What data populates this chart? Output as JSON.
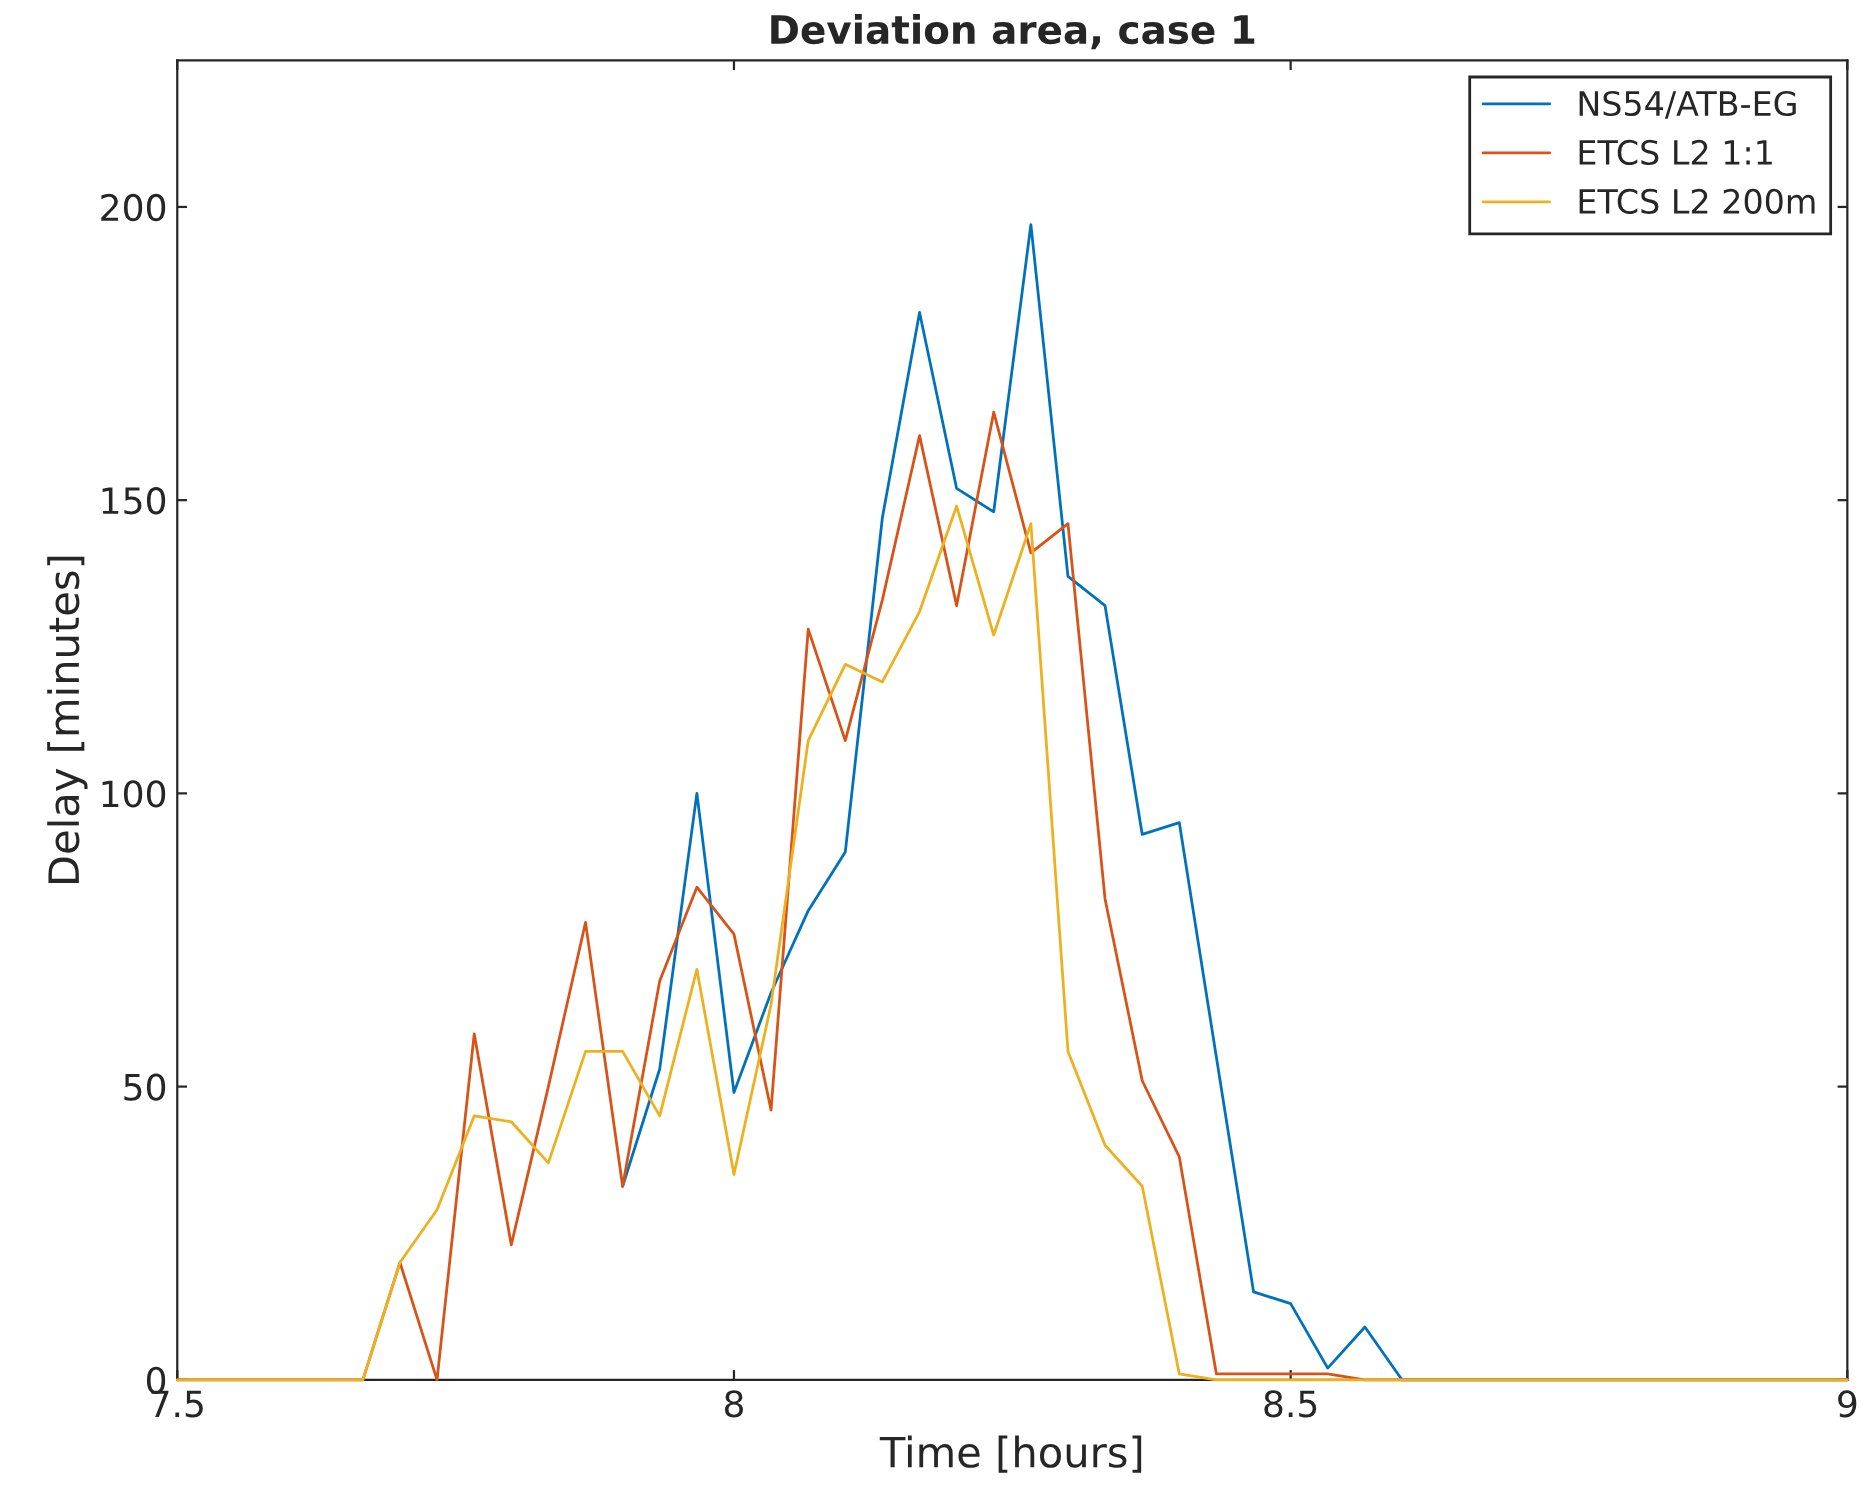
{
  "chart_data": {
    "type": "line",
    "title": "Deviation area, case 1",
    "xlabel": "Time [hours]",
    "ylabel": "Delay [minutes]",
    "x": [
      7.5,
      7.6667,
      7.7,
      7.7333,
      7.7667,
      7.8,
      7.8333,
      7.8667,
      7.9,
      7.9333,
      7.9667,
      8,
      8.0333,
      8.0667,
      8.1,
      8.1333,
      8.1667,
      8.2,
      8.2333,
      8.2667,
      8.3,
      8.3333,
      8.3667,
      8.4,
      8.4333,
      8.4667,
      8.5,
      8.5333,
      8.5667,
      8.6,
      9
    ],
    "series": [
      {
        "name": "NS54/ATB-EG",
        "color": "#0072bd",
        "values": [
          null,
          null,
          null,
          null,
          null,
          null,
          null,
          null,
          33,
          53,
          100,
          49,
          66,
          80,
          90,
          147,
          182,
          152,
          148,
          197,
          137,
          132,
          93,
          95,
          55,
          15,
          13,
          2,
          9,
          0,
          0
        ]
      },
      {
        "name": "ETCS L2 1:1",
        "color": "#d95319",
        "values": [
          0,
          0,
          20,
          0,
          59,
          23,
          50,
          78,
          33,
          68,
          84,
          76,
          46,
          128,
          109,
          133,
          161,
          132,
          165,
          141,
          146,
          82,
          51,
          38,
          1,
          1,
          1,
          1,
          0,
          0,
          0
        ]
      },
      {
        "name": "ETCS L2 200m",
        "color": "#edb120",
        "values": [
          0,
          0,
          20,
          29,
          45,
          44,
          37,
          56,
          56,
          45,
          70,
          35,
          64,
          109,
          122,
          119,
          131,
          149,
          127,
          146,
          56,
          40,
          33,
          1,
          0,
          0,
          0,
          0,
          0,
          0,
          0
        ]
      }
    ],
    "xlim": [
      7.5,
      9
    ],
    "xticks": [
      7.5,
      8,
      8.5,
      9
    ],
    "ylim": [
      0,
      225
    ],
    "yticks": [
      0,
      50,
      100,
      150,
      200
    ],
    "grid": false,
    "legend": "top right",
    "marker": "none",
    "line_style": "solid"
  }
}
